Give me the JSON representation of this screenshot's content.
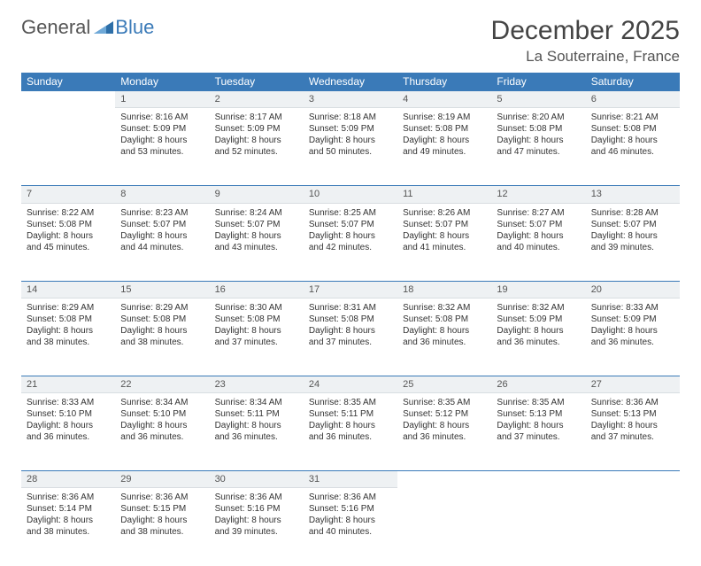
{
  "brand": {
    "part1": "General",
    "part2": "Blue"
  },
  "title": "December 2025",
  "location": "La Souterraine, France",
  "colors": {
    "header_bg": "#3a7ab8",
    "header_text": "#ffffff",
    "daynum_bg": "#eef1f3",
    "daynum_border_top": "#3a7ab8",
    "text": "#333333"
  },
  "weekdays": [
    "Sunday",
    "Monday",
    "Tuesday",
    "Wednesday",
    "Thursday",
    "Friday",
    "Saturday"
  ],
  "weeks": [
    [
      null,
      {
        "n": "1",
        "sr": "Sunrise: 8:16 AM",
        "ss": "Sunset: 5:09 PM",
        "d1": "Daylight: 8 hours",
        "d2": "and 53 minutes."
      },
      {
        "n": "2",
        "sr": "Sunrise: 8:17 AM",
        "ss": "Sunset: 5:09 PM",
        "d1": "Daylight: 8 hours",
        "d2": "and 52 minutes."
      },
      {
        "n": "3",
        "sr": "Sunrise: 8:18 AM",
        "ss": "Sunset: 5:09 PM",
        "d1": "Daylight: 8 hours",
        "d2": "and 50 minutes."
      },
      {
        "n": "4",
        "sr": "Sunrise: 8:19 AM",
        "ss": "Sunset: 5:08 PM",
        "d1": "Daylight: 8 hours",
        "d2": "and 49 minutes."
      },
      {
        "n": "5",
        "sr": "Sunrise: 8:20 AM",
        "ss": "Sunset: 5:08 PM",
        "d1": "Daylight: 8 hours",
        "d2": "and 47 minutes."
      },
      {
        "n": "6",
        "sr": "Sunrise: 8:21 AM",
        "ss": "Sunset: 5:08 PM",
        "d1": "Daylight: 8 hours",
        "d2": "and 46 minutes."
      }
    ],
    [
      {
        "n": "7",
        "sr": "Sunrise: 8:22 AM",
        "ss": "Sunset: 5:08 PM",
        "d1": "Daylight: 8 hours",
        "d2": "and 45 minutes."
      },
      {
        "n": "8",
        "sr": "Sunrise: 8:23 AM",
        "ss": "Sunset: 5:07 PM",
        "d1": "Daylight: 8 hours",
        "d2": "and 44 minutes."
      },
      {
        "n": "9",
        "sr": "Sunrise: 8:24 AM",
        "ss": "Sunset: 5:07 PM",
        "d1": "Daylight: 8 hours",
        "d2": "and 43 minutes."
      },
      {
        "n": "10",
        "sr": "Sunrise: 8:25 AM",
        "ss": "Sunset: 5:07 PM",
        "d1": "Daylight: 8 hours",
        "d2": "and 42 minutes."
      },
      {
        "n": "11",
        "sr": "Sunrise: 8:26 AM",
        "ss": "Sunset: 5:07 PM",
        "d1": "Daylight: 8 hours",
        "d2": "and 41 minutes."
      },
      {
        "n": "12",
        "sr": "Sunrise: 8:27 AM",
        "ss": "Sunset: 5:07 PM",
        "d1": "Daylight: 8 hours",
        "d2": "and 40 minutes."
      },
      {
        "n": "13",
        "sr": "Sunrise: 8:28 AM",
        "ss": "Sunset: 5:07 PM",
        "d1": "Daylight: 8 hours",
        "d2": "and 39 minutes."
      }
    ],
    [
      {
        "n": "14",
        "sr": "Sunrise: 8:29 AM",
        "ss": "Sunset: 5:08 PM",
        "d1": "Daylight: 8 hours",
        "d2": "and 38 minutes."
      },
      {
        "n": "15",
        "sr": "Sunrise: 8:29 AM",
        "ss": "Sunset: 5:08 PM",
        "d1": "Daylight: 8 hours",
        "d2": "and 38 minutes."
      },
      {
        "n": "16",
        "sr": "Sunrise: 8:30 AM",
        "ss": "Sunset: 5:08 PM",
        "d1": "Daylight: 8 hours",
        "d2": "and 37 minutes."
      },
      {
        "n": "17",
        "sr": "Sunrise: 8:31 AM",
        "ss": "Sunset: 5:08 PM",
        "d1": "Daylight: 8 hours",
        "d2": "and 37 minutes."
      },
      {
        "n": "18",
        "sr": "Sunrise: 8:32 AM",
        "ss": "Sunset: 5:08 PM",
        "d1": "Daylight: 8 hours",
        "d2": "and 36 minutes."
      },
      {
        "n": "19",
        "sr": "Sunrise: 8:32 AM",
        "ss": "Sunset: 5:09 PM",
        "d1": "Daylight: 8 hours",
        "d2": "and 36 minutes."
      },
      {
        "n": "20",
        "sr": "Sunrise: 8:33 AM",
        "ss": "Sunset: 5:09 PM",
        "d1": "Daylight: 8 hours",
        "d2": "and 36 minutes."
      }
    ],
    [
      {
        "n": "21",
        "sr": "Sunrise: 8:33 AM",
        "ss": "Sunset: 5:10 PM",
        "d1": "Daylight: 8 hours",
        "d2": "and 36 minutes."
      },
      {
        "n": "22",
        "sr": "Sunrise: 8:34 AM",
        "ss": "Sunset: 5:10 PM",
        "d1": "Daylight: 8 hours",
        "d2": "and 36 minutes."
      },
      {
        "n": "23",
        "sr": "Sunrise: 8:34 AM",
        "ss": "Sunset: 5:11 PM",
        "d1": "Daylight: 8 hours",
        "d2": "and 36 minutes."
      },
      {
        "n": "24",
        "sr": "Sunrise: 8:35 AM",
        "ss": "Sunset: 5:11 PM",
        "d1": "Daylight: 8 hours",
        "d2": "and 36 minutes."
      },
      {
        "n": "25",
        "sr": "Sunrise: 8:35 AM",
        "ss": "Sunset: 5:12 PM",
        "d1": "Daylight: 8 hours",
        "d2": "and 36 minutes."
      },
      {
        "n": "26",
        "sr": "Sunrise: 8:35 AM",
        "ss": "Sunset: 5:13 PM",
        "d1": "Daylight: 8 hours",
        "d2": "and 37 minutes."
      },
      {
        "n": "27",
        "sr": "Sunrise: 8:36 AM",
        "ss": "Sunset: 5:13 PM",
        "d1": "Daylight: 8 hours",
        "d2": "and 37 minutes."
      }
    ],
    [
      {
        "n": "28",
        "sr": "Sunrise: 8:36 AM",
        "ss": "Sunset: 5:14 PM",
        "d1": "Daylight: 8 hours",
        "d2": "and 38 minutes."
      },
      {
        "n": "29",
        "sr": "Sunrise: 8:36 AM",
        "ss": "Sunset: 5:15 PM",
        "d1": "Daylight: 8 hours",
        "d2": "and 38 minutes."
      },
      {
        "n": "30",
        "sr": "Sunrise: 8:36 AM",
        "ss": "Sunset: 5:16 PM",
        "d1": "Daylight: 8 hours",
        "d2": "and 39 minutes."
      },
      {
        "n": "31",
        "sr": "Sunrise: 8:36 AM",
        "ss": "Sunset: 5:16 PM",
        "d1": "Daylight: 8 hours",
        "d2": "and 40 minutes."
      },
      null,
      null,
      null
    ]
  ]
}
